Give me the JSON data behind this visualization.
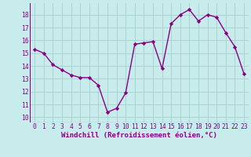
{
  "x": [
    0,
    1,
    2,
    3,
    4,
    5,
    6,
    7,
    8,
    9,
    10,
    11,
    12,
    13,
    14,
    15,
    16,
    17,
    18,
    19,
    20,
    21,
    22,
    23
  ],
  "y": [
    15.3,
    15.0,
    14.1,
    13.7,
    13.3,
    13.1,
    13.1,
    12.5,
    10.4,
    10.7,
    11.9,
    15.7,
    15.8,
    15.9,
    13.8,
    17.3,
    18.0,
    18.4,
    17.5,
    18.0,
    17.8,
    16.6,
    15.5,
    13.4
  ],
  "line_color": "#880088",
  "marker": "D",
  "marker_size": 2.2,
  "xlabel": "Windchill (Refroidissement éolien,°C)",
  "xlabel_fontsize": 6.5,
  "xtick_labels": [
    "0",
    "1",
    "2",
    "3",
    "4",
    "5",
    "6",
    "7",
    "8",
    "9",
    "10",
    "11",
    "12",
    "13",
    "14",
    "15",
    "16",
    "17",
    "18",
    "19",
    "20",
    "21",
    "22",
    "23"
  ],
  "yticks": [
    10,
    11,
    12,
    13,
    14,
    15,
    16,
    17,
    18
  ],
  "ylim": [
    9.6,
    18.9
  ],
  "xlim": [
    -0.5,
    23.5
  ],
  "grid_color": "#aad4d4",
  "bg_color": "#c8ecec",
  "tick_fontsize": 5.8,
  "linewidth": 1.0
}
